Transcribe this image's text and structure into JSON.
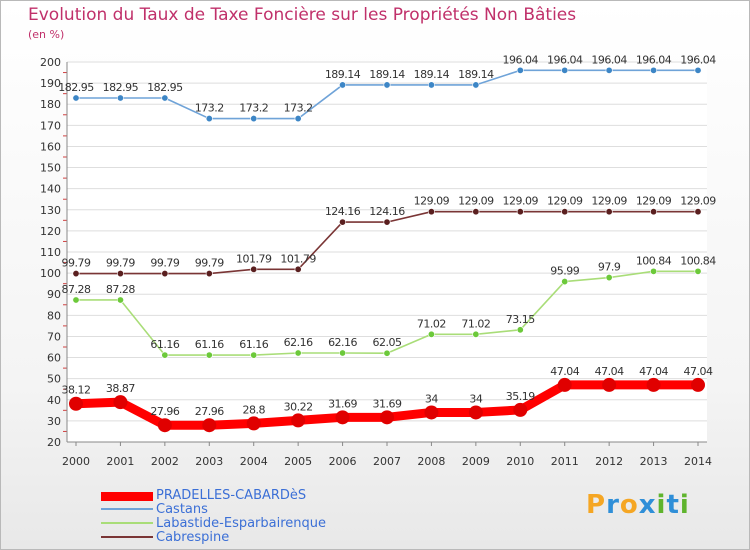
{
  "title": "Evolution du Taux de Taxe Foncière sur les Propriétés Non Bâties",
  "unit": "(en %)",
  "logo": {
    "letters": [
      "P",
      "r",
      "o",
      "x",
      "i",
      "t",
      "i"
    ],
    "colors": [
      "#f5a623",
      "#2f8fd8",
      "#f5a623",
      "#2f8fd8",
      "#5fb42d",
      "#2f8fd8",
      "#5fb42d"
    ]
  },
  "chart_data": {
    "type": "line",
    "categories": [
      "2000",
      "2001",
      "2002",
      "2003",
      "2004",
      "2005",
      "2006",
      "2007",
      "2008",
      "2009",
      "2010",
      "2011",
      "2012",
      "2013",
      "2014"
    ],
    "ylim": [
      20,
      200
    ],
    "yticks": [
      20,
      30,
      40,
      50,
      60,
      70,
      80,
      90,
      100,
      110,
      120,
      130,
      140,
      150,
      160,
      170,
      180,
      190,
      200
    ],
    "series": [
      {
        "name": "Castans",
        "color": "#6fa3d8",
        "marker": "#3d86c6",
        "labels": true,
        "values": [
          182.95,
          182.95,
          182.95,
          173.2,
          173.2,
          173.2,
          189.14,
          189.14,
          189.14,
          189.14,
          196.04,
          196.04,
          196.04,
          196.04,
          196.04
        ],
        "value_labels": [
          "182.95",
          "182.95",
          "182.95",
          "173.2",
          "173.2",
          "173.2",
          "189.14",
          "189.14",
          "189.14",
          "189.14",
          "196.04",
          "196.04",
          "196.04",
          "196.04",
          "196.04"
        ]
      },
      {
        "name": "Cabrespine",
        "color": "#7a3535",
        "marker": "#5a1f1f",
        "labels": true,
        "values": [
          99.79,
          99.79,
          99.79,
          99.79,
          101.79,
          101.79,
          124.16,
          124.16,
          129.09,
          129.09,
          129.09,
          129.09,
          129.09,
          129.09,
          129.09
        ],
        "value_labels": [
          "99.79",
          "99.79",
          "99.79",
          "99.79",
          "101.79",
          "101.79",
          "124.16",
          "124.16",
          "129.09",
          "129.09",
          "129.09",
          "129.09",
          "129.09",
          "129.09",
          "129.09"
        ]
      },
      {
        "name": "Labastide-Esparbairenque",
        "color": "#a9dd78",
        "marker": "#6cc93a",
        "labels": true,
        "values": [
          87.28,
          87.28,
          61.16,
          61.16,
          61.16,
          62.16,
          62.16,
          62.05,
          71.02,
          71.02,
          73.15,
          95.99,
          97.9,
          100.84,
          100.84
        ],
        "value_labels": [
          "87.28",
          "87.28",
          "61.16",
          "61.16",
          "61.16",
          "62.16",
          "62.16",
          "62.05",
          "71.02",
          "71.02",
          "73.15",
          "95.99",
          "97.9",
          "100.84",
          "100.84"
        ]
      },
      {
        "name": "PRADELLES-CABARDèS",
        "color": "#ff0000",
        "marker": "#e00000",
        "labels": true,
        "bold": true,
        "values": [
          38.12,
          38.87,
          27.96,
          27.96,
          28.8,
          30.22,
          31.69,
          31.69,
          34,
          34,
          35.19,
          47.04,
          47.04,
          47.04,
          47.04
        ],
        "value_labels": [
          "38.12",
          "38.87",
          "27.96",
          "27.96",
          "28.8",
          "30.22",
          "31.69",
          "31.69",
          "34",
          "34",
          "35.19",
          "47.04",
          "47.04",
          "47.04",
          "47.04"
        ]
      }
    ],
    "legend": [
      "PRADELLES-CABARDèS",
      "Castans",
      "Labastide-Esparbairenque",
      "Cabrespine"
    ],
    "legend_colors": [
      "#ff0000",
      "#6fa3d8",
      "#a9dd78",
      "#7a3535"
    ]
  }
}
